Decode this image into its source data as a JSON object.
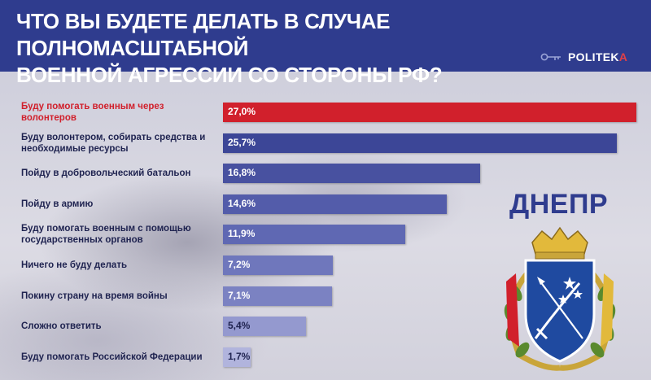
{
  "header": {
    "title_line1": "ЧТО ВЫ БУДЕТЕ ДЕЛАТЬ В СЛУЧАЕ ПОЛНОМАСШТАБНОЙ",
    "title_line2": "ВОЕННОЙ АГРЕССИИ СО СТОРОНЫ РФ?",
    "brand_main": "POLITEK",
    "brand_accent": "A",
    "brand_icon": "key-icon"
  },
  "city": {
    "name": "ДНЕПР",
    "emblem_icon": "coat-of-arms-icon"
  },
  "colors": {
    "header_bg": "#2f3c8e",
    "highlight": "#d1202c",
    "bars": [
      "#d1202c",
      "#3c4697",
      "#4851a0",
      "#535caa",
      "#5f68b3",
      "#6f77bc",
      "#7b82c2",
      "#9499cf",
      "#b1b4dd"
    ]
  },
  "chart_data": {
    "type": "bar",
    "orientation": "horizontal",
    "title": "ЧТО ВЫ БУДЕТЕ ДЕЛАТЬ В СЛУЧАЕ ПОЛНОМАСШТАБНОЙ ВОЕННОЙ АГРЕССИИ СО СТОРОНЫ РФ?",
    "categories": [
      "Буду помогать военным через волонтеров",
      "Буду волонтером, собирать средства и необходимые ресурсы",
      "Пойду в добровольческий батальон",
      "Пойду в армию",
      "Буду помогать военным с помощью государственных органов",
      "Ничего не буду делать",
      "Покину страну на время войны",
      "Сложно ответить",
      "Буду помогать Российской Федерации"
    ],
    "values": [
      27.0,
      25.7,
      16.8,
      14.6,
      11.9,
      7.2,
      7.1,
      5.4,
      1.7
    ],
    "value_labels": [
      "27,0%",
      "25,7%",
      "16,8%",
      "14,6%",
      "11,9%",
      "7,2%",
      "7,1%",
      "5,4%",
      "1,7%"
    ],
    "unit": "%",
    "highlighted_index": 0,
    "xlim": [
      0,
      27.0
    ],
    "grid": false,
    "legend": "none"
  }
}
